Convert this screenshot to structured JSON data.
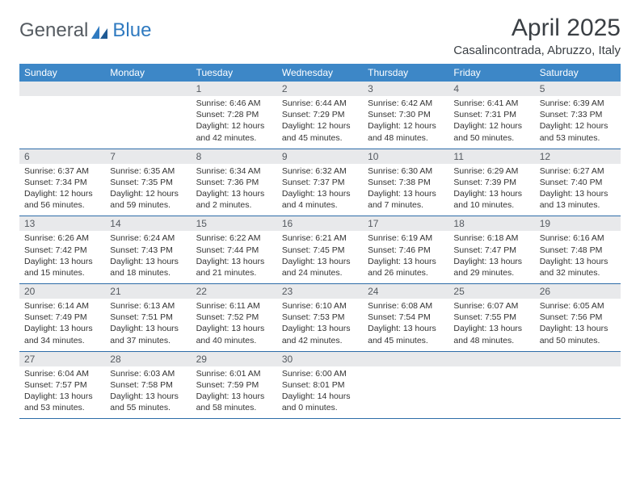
{
  "logo": {
    "text1": "General",
    "text2": "Blue"
  },
  "title": "April 2025",
  "location": "Casalincontrada, Abruzzo, Italy",
  "colors": {
    "header_bg": "#3d87c7",
    "header_fg": "#ffffff",
    "daynum_bg": "#e8e9eb",
    "daynum_fg": "#555a60",
    "rule": "#2d6ca8",
    "logo_gray": "#555b61",
    "logo_blue": "#2f7ac0"
  },
  "days_of_week": [
    "Sunday",
    "Monday",
    "Tuesday",
    "Wednesday",
    "Thursday",
    "Friday",
    "Saturday"
  ],
  "weeks": [
    [
      {
        "n": "",
        "sun": "",
        "set": "",
        "dl": ""
      },
      {
        "n": "",
        "sun": "",
        "set": "",
        "dl": ""
      },
      {
        "n": "1",
        "sun": "6:46 AM",
        "set": "7:28 PM",
        "dl": "12 hours and 42 minutes."
      },
      {
        "n": "2",
        "sun": "6:44 AM",
        "set": "7:29 PM",
        "dl": "12 hours and 45 minutes."
      },
      {
        "n": "3",
        "sun": "6:42 AM",
        "set": "7:30 PM",
        "dl": "12 hours and 48 minutes."
      },
      {
        "n": "4",
        "sun": "6:41 AM",
        "set": "7:31 PM",
        "dl": "12 hours and 50 minutes."
      },
      {
        "n": "5",
        "sun": "6:39 AM",
        "set": "7:33 PM",
        "dl": "12 hours and 53 minutes."
      }
    ],
    [
      {
        "n": "6",
        "sun": "6:37 AM",
        "set": "7:34 PM",
        "dl": "12 hours and 56 minutes."
      },
      {
        "n": "7",
        "sun": "6:35 AM",
        "set": "7:35 PM",
        "dl": "12 hours and 59 minutes."
      },
      {
        "n": "8",
        "sun": "6:34 AM",
        "set": "7:36 PM",
        "dl": "13 hours and 2 minutes."
      },
      {
        "n": "9",
        "sun": "6:32 AM",
        "set": "7:37 PM",
        "dl": "13 hours and 4 minutes."
      },
      {
        "n": "10",
        "sun": "6:30 AM",
        "set": "7:38 PM",
        "dl": "13 hours and 7 minutes."
      },
      {
        "n": "11",
        "sun": "6:29 AM",
        "set": "7:39 PM",
        "dl": "13 hours and 10 minutes."
      },
      {
        "n": "12",
        "sun": "6:27 AM",
        "set": "7:40 PM",
        "dl": "13 hours and 13 minutes."
      }
    ],
    [
      {
        "n": "13",
        "sun": "6:26 AM",
        "set": "7:42 PM",
        "dl": "13 hours and 15 minutes."
      },
      {
        "n": "14",
        "sun": "6:24 AM",
        "set": "7:43 PM",
        "dl": "13 hours and 18 minutes."
      },
      {
        "n": "15",
        "sun": "6:22 AM",
        "set": "7:44 PM",
        "dl": "13 hours and 21 minutes."
      },
      {
        "n": "16",
        "sun": "6:21 AM",
        "set": "7:45 PM",
        "dl": "13 hours and 24 minutes."
      },
      {
        "n": "17",
        "sun": "6:19 AM",
        "set": "7:46 PM",
        "dl": "13 hours and 26 minutes."
      },
      {
        "n": "18",
        "sun": "6:18 AM",
        "set": "7:47 PM",
        "dl": "13 hours and 29 minutes."
      },
      {
        "n": "19",
        "sun": "6:16 AM",
        "set": "7:48 PM",
        "dl": "13 hours and 32 minutes."
      }
    ],
    [
      {
        "n": "20",
        "sun": "6:14 AM",
        "set": "7:49 PM",
        "dl": "13 hours and 34 minutes."
      },
      {
        "n": "21",
        "sun": "6:13 AM",
        "set": "7:51 PM",
        "dl": "13 hours and 37 minutes."
      },
      {
        "n": "22",
        "sun": "6:11 AM",
        "set": "7:52 PM",
        "dl": "13 hours and 40 minutes."
      },
      {
        "n": "23",
        "sun": "6:10 AM",
        "set": "7:53 PM",
        "dl": "13 hours and 42 minutes."
      },
      {
        "n": "24",
        "sun": "6:08 AM",
        "set": "7:54 PM",
        "dl": "13 hours and 45 minutes."
      },
      {
        "n": "25",
        "sun": "6:07 AM",
        "set": "7:55 PM",
        "dl": "13 hours and 48 minutes."
      },
      {
        "n": "26",
        "sun": "6:05 AM",
        "set": "7:56 PM",
        "dl": "13 hours and 50 minutes."
      }
    ],
    [
      {
        "n": "27",
        "sun": "6:04 AM",
        "set": "7:57 PM",
        "dl": "13 hours and 53 minutes."
      },
      {
        "n": "28",
        "sun": "6:03 AM",
        "set": "7:58 PM",
        "dl": "13 hours and 55 minutes."
      },
      {
        "n": "29",
        "sun": "6:01 AM",
        "set": "7:59 PM",
        "dl": "13 hours and 58 minutes."
      },
      {
        "n": "30",
        "sun": "6:00 AM",
        "set": "8:01 PM",
        "dl": "14 hours and 0 minutes."
      },
      {
        "n": "",
        "sun": "",
        "set": "",
        "dl": ""
      },
      {
        "n": "",
        "sun": "",
        "set": "",
        "dl": ""
      },
      {
        "n": "",
        "sun": "",
        "set": "",
        "dl": ""
      }
    ]
  ],
  "labels": {
    "sunrise": "Sunrise:",
    "sunset": "Sunset:",
    "daylight": "Daylight:"
  }
}
